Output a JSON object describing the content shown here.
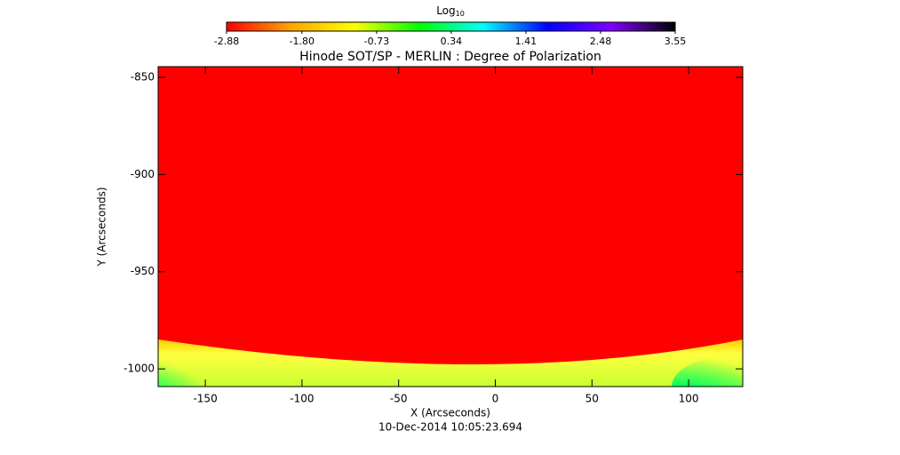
{
  "chart_data": {
    "type": "image",
    "title": "Hinode SOT/SP - MERLIN : Degree of Polarization",
    "x_label": "X (Arcseconds)",
    "y_label": "Y (Arcseconds)",
    "footer": "10-Dec-2014 10:05:23.694",
    "colorbar": {
      "label": "Log",
      "label_subscript": "10",
      "lim": [
        -2.88,
        3.55
      ],
      "ticks": [
        -2.88,
        {
          "value": -1.8,
          "label": "-1.80"
        },
        -0.73,
        0.34,
        1.41,
        2.48,
        3.55
      ],
      "colors": [
        "#ff0000",
        "#ffa500",
        "#ffff00",
        "#00ff00",
        "#00ffff",
        "#0000ff",
        "#8000ff",
        "#000000"
      ]
    },
    "xlim": [
      -174.4,
      128
    ],
    "xticks": [
      -150,
      -100,
      -50,
      0,
      50,
      100
    ],
    "ylim": [
      -1009.1,
      -844.5
    ],
    "yticks": [
      -850,
      -900,
      -950,
      -1000
    ]
  }
}
